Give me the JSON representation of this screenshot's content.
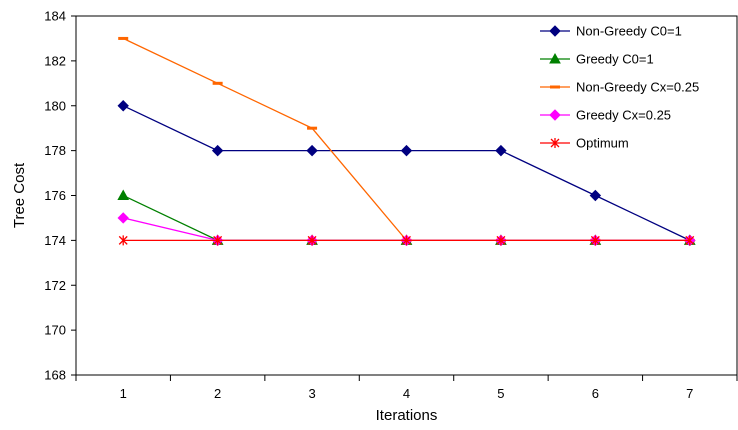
{
  "chart_data": {
    "type": "line",
    "title": "",
    "xlabel": "Iterations",
    "ylabel": "Tree Cost",
    "x": [
      1,
      2,
      3,
      4,
      5,
      6,
      7
    ],
    "ylim": [
      168,
      184
    ],
    "yticks": [
      168,
      170,
      172,
      174,
      176,
      178,
      180,
      182,
      184
    ],
    "grid": false,
    "legend_position": "top-right",
    "series": [
      {
        "name": "Non-Greedy C0=1",
        "color": "#000080",
        "marker": "diamond",
        "x": [
          1,
          2,
          3,
          4,
          5,
          6,
          7
        ],
        "values": [
          180,
          178,
          178,
          178,
          178,
          176,
          174
        ]
      },
      {
        "name": "Greedy C0=1",
        "color": "#008000",
        "marker": "triangle",
        "x": [
          1,
          2,
          3,
          4,
          5,
          6,
          7
        ],
        "values": [
          176,
          174,
          174,
          174,
          174,
          174,
          174
        ]
      },
      {
        "name": "Non-Greedy Cx=0.25",
        "color": "#FF6600",
        "marker": "dash",
        "x": [
          1,
          2,
          3,
          4,
          5,
          6,
          7
        ],
        "values": [
          183,
          181,
          179,
          174,
          174,
          174,
          174
        ]
      },
      {
        "name": "Greedy Cx=0.25",
        "color": "#FF00FF",
        "marker": "diamond",
        "x": [
          1,
          2,
          3,
          4,
          5,
          6,
          7
        ],
        "values": [
          175,
          174,
          174,
          174,
          174,
          174,
          174
        ]
      },
      {
        "name": "Optimum",
        "color": "#FF0000",
        "marker": "star",
        "x": [
          1,
          2,
          3,
          4,
          5,
          6,
          7
        ],
        "values": [
          174,
          174,
          174,
          174,
          174,
          174,
          174
        ]
      }
    ]
  }
}
